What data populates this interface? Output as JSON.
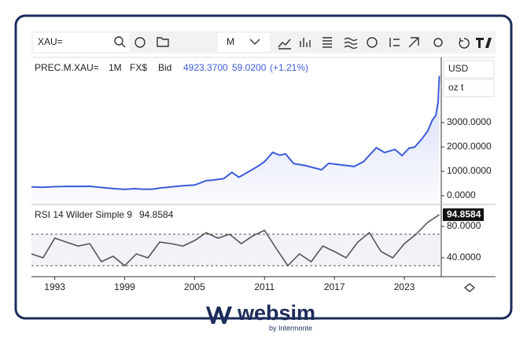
{
  "toolbar": {
    "search": "XAU=",
    "interval": "M"
  },
  "legend": {
    "symbol": "PREC.M.XAU=",
    "interval": "1M",
    "source": "FX$",
    "side": "Bid",
    "last": "4923.3700",
    "change": "59.0200",
    "change_pct": "(+1.21%)"
  },
  "currency": "USD",
  "unit": "oz t",
  "chart_data": [
    {
      "type": "line",
      "color": "#3d5bd9",
      "area": true,
      "x": [
        1991,
        1992,
        1993,
        1994,
        1995,
        1996,
        1997,
        1998,
        1999,
        1999.8,
        2000.5,
        2001.3,
        2002,
        2003,
        2004,
        2005,
        2006,
        2006.5,
        2007.5,
        2008.2,
        2008.8,
        2009.5,
        2010.5,
        2011,
        2011.7,
        2012.3,
        2012.8,
        2013.5,
        2014.5,
        2015.9,
        2016.5,
        2017.5,
        2018.7,
        2019.5,
        2020.6,
        2021.3,
        2022.2,
        2022.8,
        2023.4,
        2023.9,
        2024.5,
        2025,
        2025.4,
        2025.7,
        2025.9,
        2026
      ],
      "values": [
        362,
        344,
        370,
        383,
        385,
        387,
        340,
        295,
        262,
        290,
        272,
        265,
        315,
        365,
        410,
        440,
        620,
        635,
        700,
        960,
        760,
        950,
        1230,
        1400,
        1780,
        1660,
        1720,
        1320,
        1240,
        1065,
        1330,
        1270,
        1200,
        1400,
        1970,
        1770,
        1900,
        1650,
        1950,
        2000,
        2330,
        2650,
        3100,
        3300,
        3850,
        4923.37
      ],
      "xlim": [
        1991,
        2026.1
      ],
      "ylim": [
        -290,
        5613
      ],
      "yticks": [
        {
          "value": 0,
          "label": "0.0000"
        },
        {
          "value": 1000,
          "label": "1000.0000"
        },
        {
          "value": 2000,
          "label": "2000.0000"
        },
        {
          "value": 3000,
          "label": "3000.0000"
        }
      ]
    },
    {
      "type": "line",
      "color": "#555555",
      "title": "RSI 14 Wilder Simple 9",
      "x": [
        1991,
        1992,
        1993,
        1994,
        1995,
        1996,
        1997,
        1998,
        1999,
        2000,
        2001,
        2002,
        2003,
        2004,
        2005,
        2006,
        2007,
        2008,
        2009,
        2010,
        2011,
        2012,
        2013,
        2014,
        2015,
        2016,
        2017,
        2018,
        2019,
        2020,
        2021,
        2022,
        2023,
        2024,
        2025,
        2026
      ],
      "values": [
        45,
        40,
        65,
        60,
        55,
        58,
        35,
        42,
        30,
        45,
        40,
        60,
        58,
        55,
        62,
        72,
        65,
        70,
        58,
        68,
        75,
        52,
        30,
        45,
        35,
        55,
        48,
        40,
        60,
        72,
        48,
        40,
        58,
        70,
        85,
        94.8584
      ],
      "levels": [
        30,
        70
      ],
      "xlim": [
        1991,
        2026.1
      ],
      "ylim": [
        16,
        106
      ],
      "xticks": [
        1993,
        1999,
        2005,
        2011,
        2017,
        2023
      ],
      "yticks": [
        {
          "value": 40,
          "label": "40.0000"
        },
        {
          "value": 80,
          "label": "80.0000"
        }
      ]
    }
  ],
  "logo": {
    "name": "websim",
    "tagline": "by Intermonte"
  }
}
